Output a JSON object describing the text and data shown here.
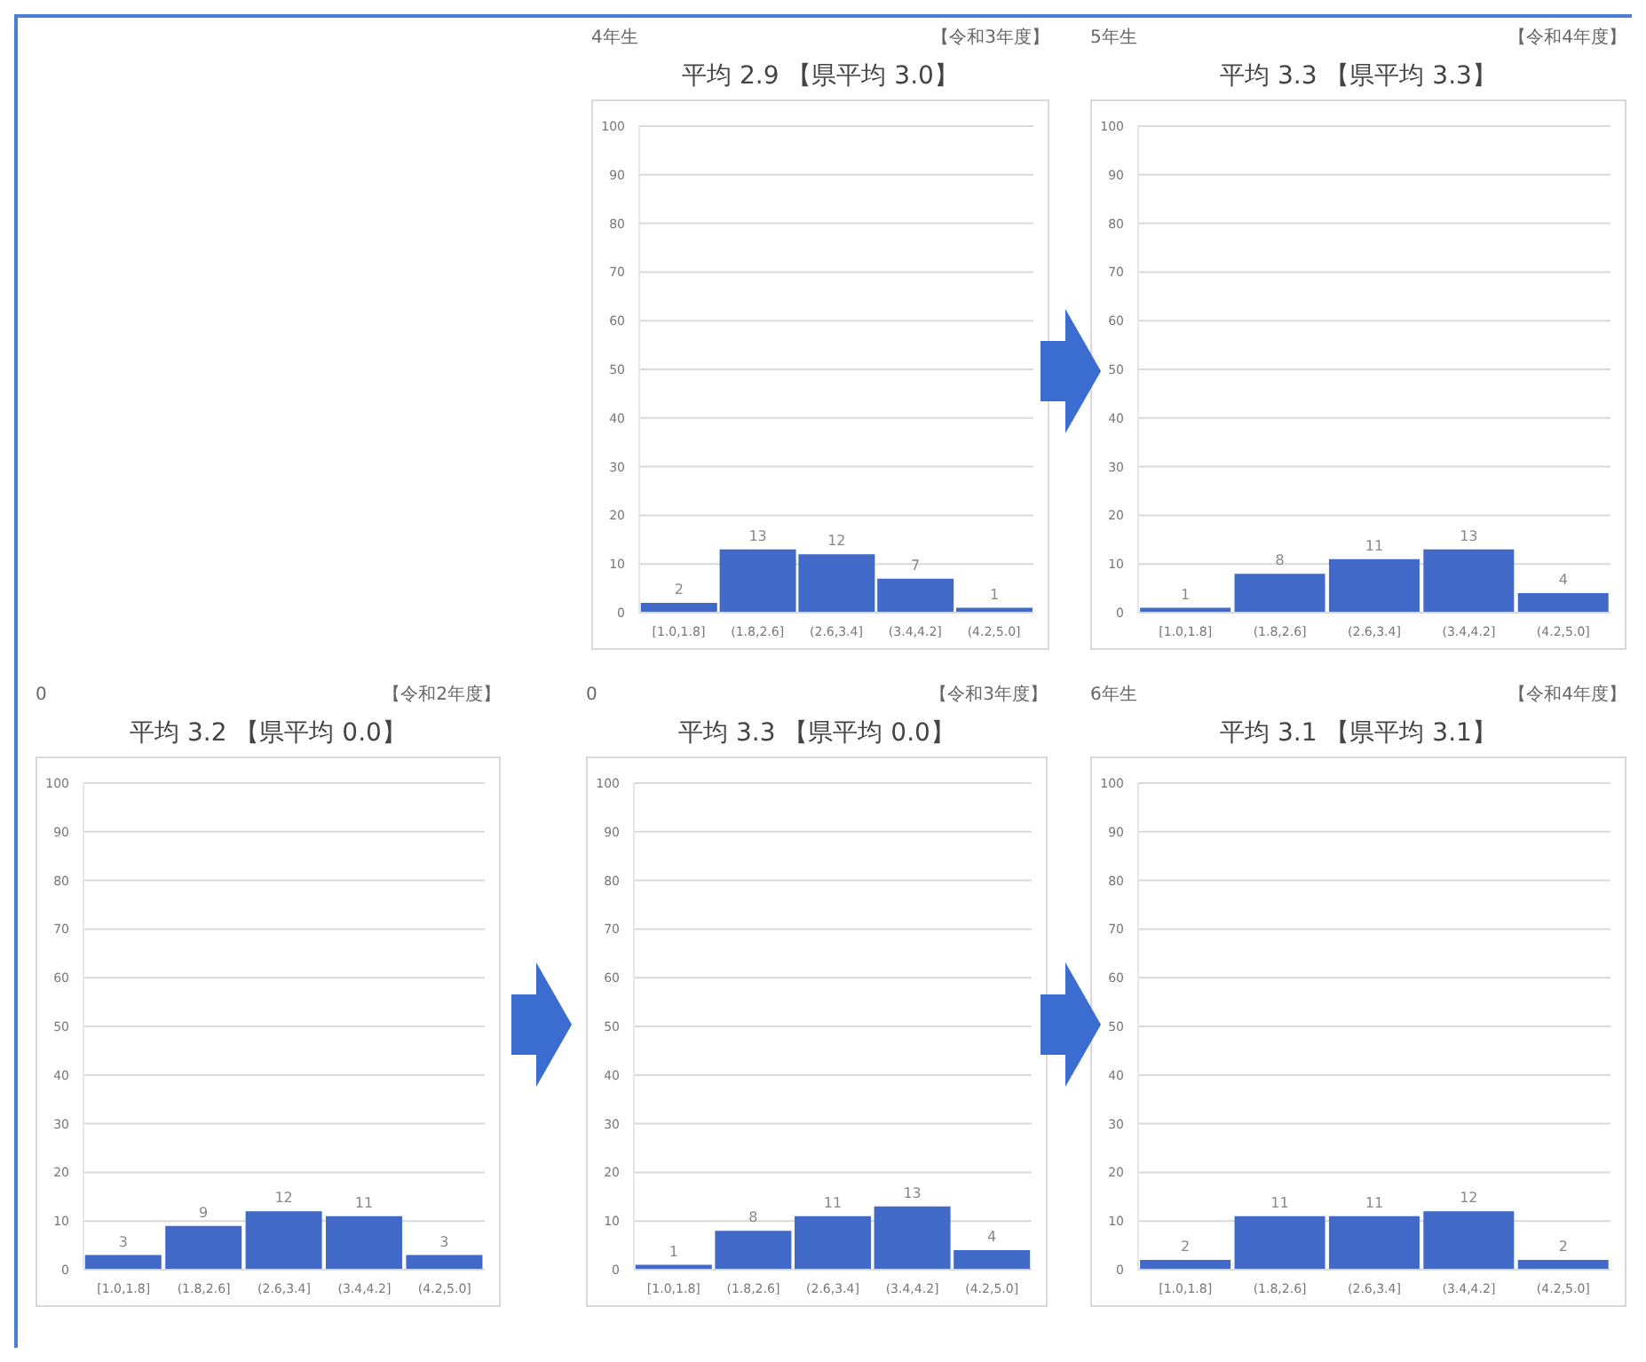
{
  "chart_data": [
    {
      "type": "bar",
      "subtitle": "4年生",
      "annotations": [
        "【令和3年度】"
      ],
      "title": "平均 2.9 【県平均 3.0】",
      "categories": [
        "[1.0,1.8]",
        "(1.8,2.6]",
        "(2.6,3.4]",
        "(3.4,4.2]",
        "(4.2,5.0]"
      ],
      "values": [
        2,
        13,
        12,
        7,
        1
      ],
      "color": "#4169c8",
      "ylim": [
        0,
        100
      ],
      "yticks": [
        0,
        10,
        20,
        30,
        40,
        50,
        60,
        70,
        80,
        90,
        100
      ],
      "grid": "y",
      "data_labels": true
    },
    {
      "type": "bar",
      "subtitle": "5年生",
      "annotations": [
        "【令和4年度】"
      ],
      "title": "平均 3.3 【県平均 3.3】",
      "categories": [
        "[1.0,1.8]",
        "(1.8,2.6]",
        "(2.6,3.4]",
        "(3.4,4.2]",
        "(4.2,5.0]"
      ],
      "values": [
        1,
        8,
        11,
        13,
        4
      ],
      "color": "#4169c8",
      "ylim": [
        0,
        100
      ],
      "yticks": [
        0,
        10,
        20,
        30,
        40,
        50,
        60,
        70,
        80,
        90,
        100
      ],
      "grid": "y",
      "data_labels": true
    },
    {
      "type": "bar",
      "subtitle": "0",
      "annotations": [
        "【令和2年度】"
      ],
      "title": "平均 3.2 【県平均 0.0】",
      "categories": [
        "[1.0,1.8]",
        "(1.8,2.6]",
        "(2.6,3.4]",
        "(3.4,4.2]",
        "(4.2,5.0]"
      ],
      "values": [
        3,
        9,
        12,
        11,
        3
      ],
      "color": "#4169c8",
      "ylim": [
        0,
        100
      ],
      "yticks": [
        0,
        10,
        20,
        30,
        40,
        50,
        60,
        70,
        80,
        90,
        100
      ],
      "grid": "y",
      "data_labels": true
    },
    {
      "type": "bar",
      "subtitle": "0",
      "annotations": [
        "【令和3年度】"
      ],
      "title": "平均 3.3 【県平均 0.0】",
      "categories": [
        "[1.0,1.8]",
        "(1.8,2.6]",
        "(2.6,3.4]",
        "(3.4,4.2]",
        "(4.2,5.0]"
      ],
      "values": [
        1,
        8,
        11,
        13,
        4
      ],
      "color": "#4169c8",
      "ylim": [
        0,
        100
      ],
      "yticks": [
        0,
        10,
        20,
        30,
        40,
        50,
        60,
        70,
        80,
        90,
        100
      ],
      "grid": "y",
      "data_labels": true
    },
    {
      "type": "bar",
      "subtitle": "6年生",
      "annotations": [
        "【令和4年度】"
      ],
      "title": "平均 3.1 【県平均 3.1】",
      "categories": [
        "[1.0,1.8]",
        "(1.8,2.6]",
        "(2.6,3.4]",
        "(3.4,4.2]",
        "(4.2,5.0]"
      ],
      "values": [
        2,
        11,
        11,
        12,
        2
      ],
      "color": "#4169c8",
      "ylim": [
        0,
        100
      ],
      "yticks": [
        0,
        10,
        20,
        30,
        40,
        50,
        60,
        70,
        80,
        90,
        100
      ],
      "grid": "y",
      "data_labels": true
    }
  ]
}
